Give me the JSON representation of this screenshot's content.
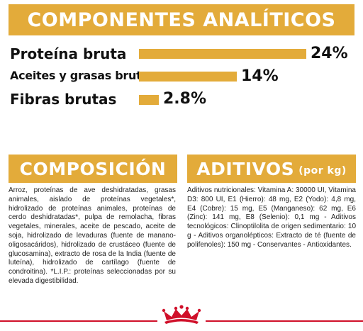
{
  "header": {
    "title": "COMPONENTES ANALÍTICOS"
  },
  "analytics": {
    "rows": [
      {
        "label": "Proteína bruta",
        "percent_text": "24%",
        "value": 24
      },
      {
        "label": "Aceites y grasas brutos",
        "percent_text": "14%",
        "value": 14
      },
      {
        "label": "Fibras brutas",
        "percent_text": "2.8%",
        "value": 2.8
      }
    ]
  },
  "composition": {
    "title": "COMPOSICIÓN",
    "text": "Arroz, proteínas de ave deshidratadas, grasas animales, aislado de proteínas vegetales*, hidrolizado de proteínas animales, proteínas de cerdo deshidratadas*, pulpa de remolacha, fibras vegetales, minerales, aceite de pescado, aceite de soja, hidrolizado de levaduras (fuente de manano-oligosacáridos), hidrolizado de crustáceo (fuente de glucosamina), extracto de rosa de la India (fuente de luteína), hidrolizado de cartílago (fuente de condroitina). *L.I.P.: proteínas seleccionadas por su elevada digestibilidad."
  },
  "additives": {
    "title": "ADITIVOS",
    "title_suffix": "(por kg)",
    "text": "Aditivos nutricionales: Vitamina A: 30000 UI, Vitamina D3: 800 UI, E1 (Hierro): 48 mg, E2 (Yodo): 4,8 mg, E4 (Cobre): 15 mg, E5 (Manganeso): 62 mg, E6 (Zinc): 141 mg, E8 (Selenio): 0,1 mg - Aditivos tecnológicos: Clinoptilolita de origen sedimentario: 10 g - Aditivos organolépticos: Extracto de té (fuente de polifenoles): 150 mg - Conservantes - Antioxidantes."
  },
  "colors": {
    "accent": "#e3ab3a",
    "brand_red": "#d0102a"
  },
  "footer": {
    "logo_icon": "crown-logo-icon"
  }
}
